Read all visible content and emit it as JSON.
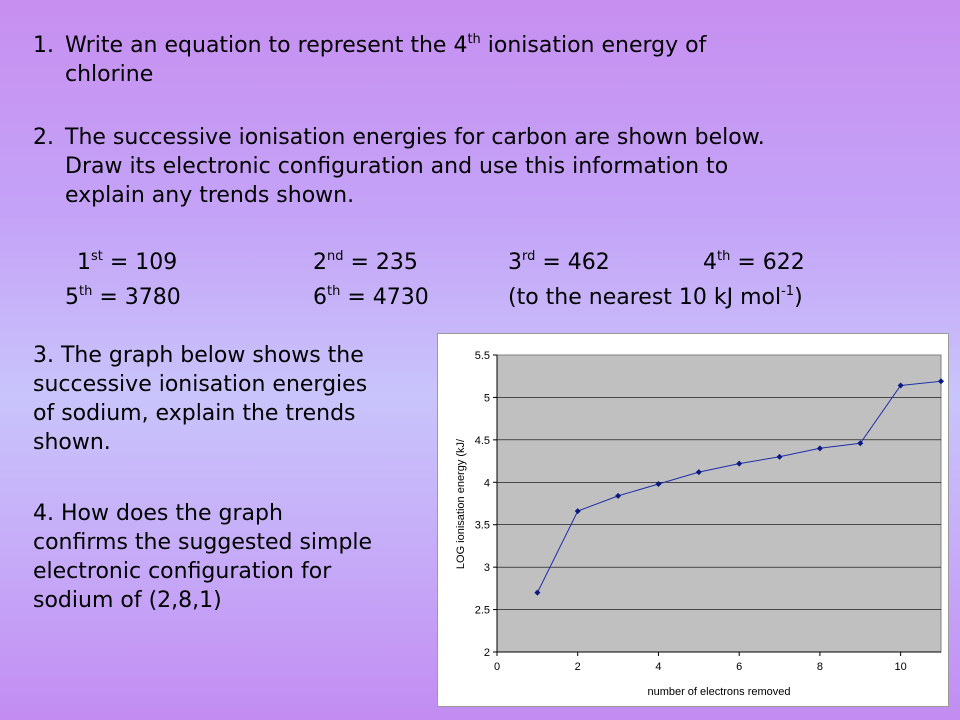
{
  "questions": {
    "q1": {
      "number": "1.",
      "line1_pre": "Write an equation to represent the 4",
      "line1_sup": "th",
      "line1_post": " ionisation energy of",
      "line2": "chlorine"
    },
    "q2": {
      "number": "2.",
      "lines": [
        "The successive ionisation energies for carbon are shown below.",
        "Draw its electronic configuration and use this information to",
        "explain any trends shown."
      ],
      "energies": [
        {
          "ordinal": "1",
          "suffix": "st",
          "text": " = 109"
        },
        {
          "ordinal": "2",
          "suffix": "nd",
          "text": " = 235"
        },
        {
          "ordinal": "3",
          "suffix": "rd",
          "text": " = 462"
        },
        {
          "ordinal": "4",
          "suffix": "th",
          "text": " = 622"
        },
        {
          "ordinal": "5",
          "suffix": "th",
          "text": " = 3780"
        },
        {
          "ordinal": "6",
          "suffix": "th",
          "text": " = 4730"
        }
      ],
      "unit_note_pre": "(to the nearest 10 kJ mol",
      "unit_note_sup": "-1",
      "unit_note_post": ")"
    },
    "q3": {
      "lines": [
        "3. The graph below shows the",
        "successive ionisation energies",
        "of sodium, explain the trends",
        "shown."
      ]
    },
    "q4": {
      "lines": [
        "4. How does the graph",
        "confirms the suggested simple",
        "electronic configuration for",
        "sodium of (2,8,1)"
      ]
    }
  },
  "chart_data": {
    "type": "line",
    "title": "",
    "xlabel": "number of electrons removed",
    "ylabel": "LOG ionisation energy (kJ/",
    "xlim": [
      0,
      11
    ],
    "ylim": [
      2,
      5.5
    ],
    "x_ticks": [
      0,
      2,
      4,
      6,
      8,
      10
    ],
    "y_ticks": [
      "2",
      "2.5",
      "3",
      "3.5",
      "4",
      "4.5",
      "5",
      "5.5"
    ],
    "grid": "horizontal",
    "plot_background": "#c0c0c0",
    "line_color": "#1f2fa8",
    "series": [
      {
        "x": [
          1,
          2,
          3,
          4,
          5,
          6,
          7,
          8,
          9,
          10,
          11
        ],
        "y": [
          2.7,
          3.66,
          3.84,
          3.98,
          4.12,
          4.22,
          4.3,
          4.4,
          4.46,
          5.14,
          5.19
        ]
      }
    ]
  }
}
